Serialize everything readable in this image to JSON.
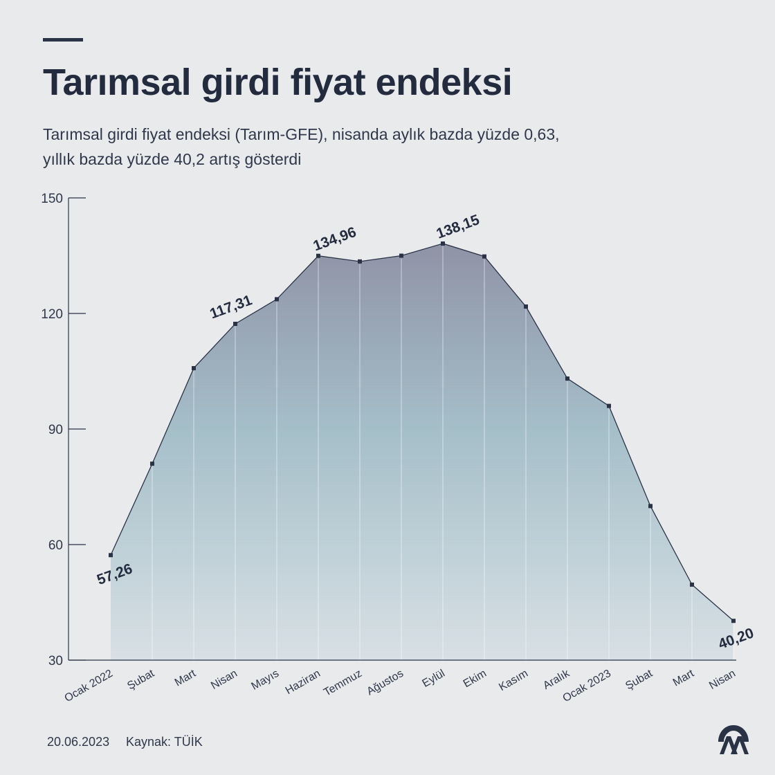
{
  "header": {
    "title": "Tarımsal girdi fiyat endeksi",
    "subtitle_line1": "Tarımsal girdi fiyat endeksi (Tarım-GFE), nisanda aylık bazda yüzde 0,63,",
    "subtitle_line2": "yıllık bazda yüzde 40,2 artış gösterdi"
  },
  "footer": {
    "date": "20.06.2023",
    "source": "Kaynak: TÜİK"
  },
  "logo": {
    "icon": "aa-logo-icon",
    "color": "#2a3246"
  },
  "chart_data": {
    "type": "area",
    "categories": [
      "Ocak 2022",
      "Şubat",
      "Mart",
      "Nisan",
      "Mayıs",
      "Haziran",
      "Temmuz",
      "Ağustos",
      "Eylül",
      "Ekim",
      "Kasım",
      "Aralık",
      "Ocak 2023",
      "Şubat",
      "Mart",
      "Nisan"
    ],
    "values": [
      57.26,
      81,
      105.8,
      117.31,
      123.7,
      134.96,
      133.5,
      135,
      138.15,
      134.8,
      121.8,
      103.1,
      96,
      70,
      49.6,
      40.2
    ],
    "data_labels": [
      {
        "index": 0,
        "text": "57,26"
      },
      {
        "index": 3,
        "text": "117,31"
      },
      {
        "index": 5,
        "text": "134,96"
      },
      {
        "index": 8,
        "text": "138,15"
      },
      {
        "index": 15,
        "text": "40,20"
      }
    ],
    "ylim": [
      30,
      150
    ],
    "yticks": [
      30,
      60,
      90,
      120,
      150
    ],
    "ytick_labels": [
      "30",
      "60",
      "90",
      "120",
      "150"
    ],
    "xlabel": "",
    "ylabel": "",
    "grid": "vertical",
    "line_color": "#2a3246",
    "fill_top_color": "#8f93a6",
    "fill_mid_color": "#a5bfc9",
    "fill_bottom_color": "#d8e0e5"
  }
}
